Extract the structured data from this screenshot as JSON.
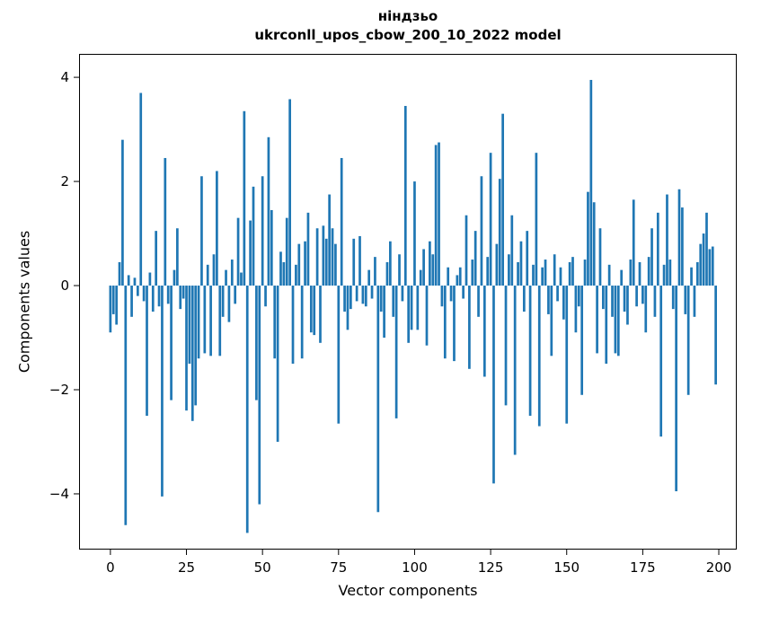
{
  "chart_data": {
    "type": "bar",
    "title": "ніндзьо",
    "subtitle": "ukrconll_upos_cbow_200_10_2022 model",
    "xlabel": "Vector components",
    "ylabel": "Components values",
    "bar_color": "#1f77b4",
    "legend": "none",
    "grid": false,
    "xlim": [
      -10.3,
      205.9
    ],
    "ylim": [
      -5.07,
      4.45
    ],
    "x_ticks": [
      0,
      25,
      50,
      75,
      100,
      125,
      150,
      175,
      200
    ],
    "x_tick_labels": [
      "0",
      "25",
      "50",
      "75",
      "100",
      "125",
      "150",
      "175",
      "200"
    ],
    "y_ticks": [
      -4,
      -2,
      0,
      2,
      4
    ],
    "y_tick_labels": [
      "−4",
      "−2",
      "0",
      "2",
      "4"
    ],
    "bar_width_units": 0.8,
    "values": [
      -0.9,
      -0.55,
      -0.75,
      0.45,
      2.8,
      -4.6,
      0.2,
      -0.6,
      0.15,
      -0.2,
      3.7,
      -0.3,
      -2.5,
      0.25,
      -0.5,
      1.05,
      -0.4,
      -4.05,
      2.45,
      -0.35,
      -2.2,
      0.3,
      1.1,
      -0.45,
      -0.25,
      -2.4,
      -1.5,
      -2.6,
      -2.3,
      -1.4,
      2.1,
      -1.3,
      0.4,
      -1.35,
      0.6,
      2.2,
      -1.35,
      -0.6,
      0.3,
      -0.7,
      0.5,
      -0.35,
      1.3,
      0.25,
      3.35,
      -4.75,
      1.25,
      1.9,
      -2.2,
      -4.2,
      2.1,
      -0.4,
      2.85,
      1.45,
      -1.4,
      -3.0,
      0.65,
      0.45,
      1.3,
      3.58,
      -1.5,
      0.4,
      0.8,
      -1.4,
      0.85,
      1.4,
      -0.9,
      -0.95,
      1.1,
      -1.1,
      1.15,
      0.9,
      1.75,
      1.1,
      0.8,
      -2.65,
      2.45,
      -0.5,
      -0.85,
      -0.45,
      0.9,
      -0.3,
      0.95,
      -0.35,
      -0.4,
      0.3,
      -0.25,
      0.55,
      -4.35,
      -0.5,
      -1.0,
      0.45,
      0.85,
      -0.6,
      -2.55,
      0.6,
      -0.3,
      3.45,
      -1.1,
      -0.85,
      2.0,
      -0.85,
      0.3,
      0.7,
      -1.15,
      0.85,
      0.6,
      2.7,
      2.75,
      -0.4,
      -1.4,
      0.35,
      -0.3,
      -1.45,
      0.2,
      0.35,
      -0.25,
      1.35,
      -1.6,
      0.5,
      1.05,
      -0.6,
      2.1,
      -1.75,
      0.55,
      2.55,
      -3.8,
      0.8,
      2.05,
      3.3,
      -2.3,
      0.6,
      1.35,
      -3.25,
      0.45,
      0.85,
      -0.5,
      1.05,
      -2.5,
      0.4,
      2.55,
      -2.7,
      0.35,
      0.5,
      -0.55,
      -1.35,
      0.6,
      -0.3,
      0.35,
      -0.65,
      -2.65,
      0.45,
      0.55,
      -0.9,
      -0.4,
      -2.1,
      0.5,
      1.8,
      3.95,
      1.6,
      -1.3,
      1.1,
      -0.45,
      -1.5,
      0.4,
      -0.6,
      -1.3,
      -1.35,
      0.3,
      -0.5,
      -0.75,
      0.5,
      1.65,
      -0.4,
      0.45,
      -0.35,
      -0.9,
      0.55,
      1.1,
      -0.6,
      1.4,
      -2.9,
      0.4,
      1.75,
      0.5,
      -0.45,
      -3.95,
      1.85,
      1.5,
      -0.55,
      -2.1,
      0.35,
      -0.6,
      0.45,
      0.8,
      1.0,
      1.4,
      0.7,
      0.75,
      -1.9
    ]
  }
}
